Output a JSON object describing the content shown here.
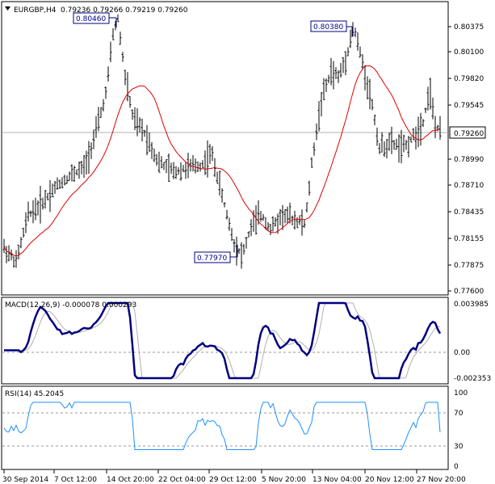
{
  "header": {
    "symbol": "EURGBP,H4",
    "ohlc": "0.79236 0.79266 0.79219 0.79260"
  },
  "price_panel": {
    "y_ticks": [
      "0.80375",
      "0.80100",
      "0.79820",
      "0.79545",
      "0.79260",
      "0.78990",
      "0.78710",
      "0.78435",
      "0.78155",
      "0.77875",
      "0.77600"
    ],
    "current_price": "0.79260",
    "annotations": [
      "0.80460",
      "0.80380",
      "0.77970"
    ]
  },
  "macd_panel": {
    "label": "MACD(12,26,9) -0.000078 0.000293",
    "y_ticks": [
      "0.003985",
      "0.00",
      "-0.002353"
    ]
  },
  "rsi_panel": {
    "label": "RSI(14) 45.2045",
    "y_ticks": [
      "100",
      "70",
      "30",
      "0"
    ]
  },
  "x_axis": {
    "labels": [
      "30 Sep 2014",
      "7 Oct 12:00",
      "14 Oct 20:00",
      "22 Oct 04:00",
      "29 Oct 12:00",
      "5 Nov 20:00",
      "13 Nov 04:00",
      "20 Nov 12:00",
      "27 Nov 20:00"
    ]
  },
  "colors": {
    "bars": "#000000",
    "ma": "#e00000",
    "macd": "#000080",
    "signal": "#b0b0b0",
    "rsi": "#1e90ff",
    "annotation_text": "#000080"
  },
  "chart_data": {
    "type": "ohlc",
    "price_keyframes": [
      [
        "30 Sep 2014",
        0.78
      ],
      [
        "7 Oct 12:00",
        0.7868
      ],
      [
        "14 Oct 20:00",
        0.8046
      ],
      [
        "22 Oct 04:00",
        0.7895
      ],
      [
        "29 Oct 12:00",
        0.7797
      ],
      [
        "5 Nov 20:00",
        0.783
      ],
      [
        "13 Nov 04:00",
        0.8038
      ],
      [
        "20 Nov 12:00",
        0.7905
      ],
      [
        "27 Nov 20:00",
        0.7926
      ]
    ],
    "macd_range": [
      -0.002353,
      0.003985
    ],
    "rsi_range": [
      0,
      100
    ],
    "rsi_last": 45.2045
  }
}
